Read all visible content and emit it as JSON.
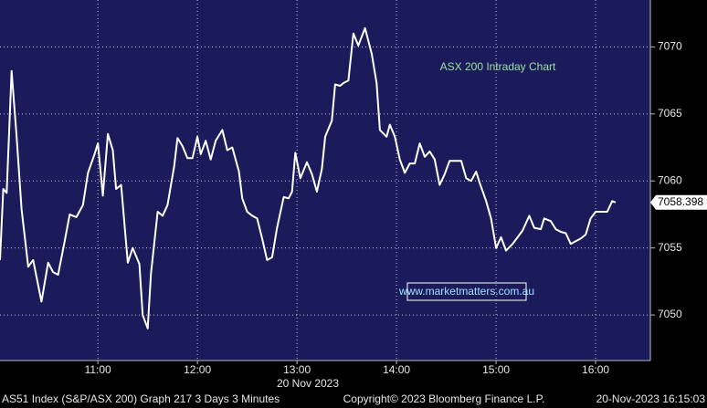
{
  "chart_data": {
    "type": "line",
    "title": "ASX 200 Intraday Chart",
    "watermark": "www.marketmatters.com.au",
    "x_axis_label": "20 Nov 2023",
    "footer": {
      "left": "AS51 Index (S&P/ASX 200) Graph 217 3 Days 3 Minutes",
      "center": "Copyright© 2023 Bloomberg Finance L.P.",
      "right": "20-Nov-2023 16:15:03"
    },
    "x": [
      601,
      603,
      605,
      608,
      611,
      614,
      618,
      621,
      626,
      630,
      633,
      636,
      640,
      643,
      647,
      651,
      654,
      658,
      660,
      663,
      666,
      669,
      671,
      674,
      678,
      681,
      685,
      687,
      690,
      692,
      696,
      699,
      702,
      706,
      708,
      711,
      714,
      717,
      720,
      722,
      725,
      728,
      731,
      735,
      738,
      741,
      745,
      747,
      750,
      753,
      756,
      759,
      762,
      765,
      768,
      772,
      775,
      777,
      779,
      782,
      786,
      789,
      792,
      795,
      797,
      801,
      803,
      806,
      808,
      811,
      814,
      817,
      821,
      825,
      828,
      830,
      834,
      836,
      839,
      842,
      845,
      848,
      851,
      854,
      857,
      860,
      863,
      866,
      869,
      872,
      875,
      879,
      882,
      885,
      888,
      890,
      894,
      897,
      900,
      903,
      906,
      910,
      913,
      916,
      920,
      923,
      927,
      929,
      933,
      936,
      939,
      942,
      945,
      948,
      951,
      954,
      957,
      960,
      964,
      967,
      970,
      972
    ],
    "series": [
      {
        "color": "#ffffff",
        "values": [
          7054.1,
          7059.4,
          7059.1,
          7068.2,
          7063.3,
          7057.9,
          7053.6,
          7054.1,
          7051.0,
          7053.9,
          7053.2,
          7053.0,
          7055.5,
          7057.5,
          7057.3,
          7058.2,
          7060.6,
          7062.0,
          7062.8,
          7058.9,
          7063.5,
          7062.3,
          7059.4,
          7059.7,
          7053.9,
          7055.0,
          7053.8,
          7050.0,
          7049.0,
          7053.1,
          7057.7,
          7057.4,
          7058.2,
          7061.1,
          7063.2,
          7062.6,
          7061.7,
          7061.7,
          7063.3,
          7062.0,
          7063.0,
          7061.6,
          7063.0,
          7063.8,
          7062.3,
          7062.5,
          7060.7,
          7058.7,
          7057.7,
          7057.4,
          7057.2,
          7055.7,
          7054.1,
          7054.3,
          7056.5,
          7058.8,
          7058.7,
          7059.2,
          7062.1,
          7060.2,
          7061.4,
          7060.5,
          7059.2,
          7060.9,
          7063.3,
          7064.5,
          7067.2,
          7067.1,
          7067.3,
          7067.5,
          7071.0,
          7070.1,
          7071.4,
          7069.5,
          7067.3,
          7063.8,
          7063.3,
          7064.2,
          7063.3,
          7061.6,
          7060.6,
          7061.3,
          7061.3,
          7062.8,
          7061.8,
          7062.2,
          7061.6,
          7059.7,
          7060.5,
          7061.5,
          7061.5,
          7061.5,
          7060.2,
          7060.0,
          7060.7,
          7059.9,
          7058.5,
          7057.2,
          7055.0,
          7055.8,
          7054.8,
          7055.3,
          7055.8,
          7056.3,
          7057.4,
          7056.5,
          7056.4,
          7057.2,
          7057.0,
          7056.4,
          7056.2,
          7056.1,
          7055.3,
          7055.5,
          7055.7,
          7056.0,
          7057.2,
          7057.7,
          7057.7,
          7057.7,
          7058.5,
          7058.398
        ]
      }
    ],
    "last_price": 7058.398,
    "xlim": [
      601,
      993
    ],
    "xticks": [
      {
        "value": 660,
        "label": "11:00"
      },
      {
        "value": 720,
        "label": "12:00"
      },
      {
        "value": 780,
        "label": "13:00"
      },
      {
        "value": 840,
        "label": "14:00"
      },
      {
        "value": 900,
        "label": "15:00"
      },
      {
        "value": 960,
        "label": "16:00"
      }
    ],
    "ylim": [
      7046.6,
      7073.5
    ],
    "yticks": [
      7050,
      7055,
      7060,
      7065,
      7070
    ],
    "grid": true,
    "background": "#1b1b5c"
  }
}
